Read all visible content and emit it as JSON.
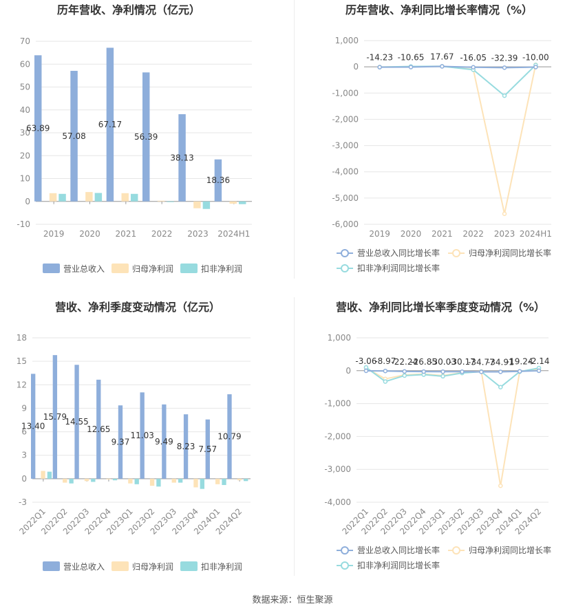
{
  "source": "数据来源：恒生聚源",
  "colors": {
    "revenue": "#8eaedb",
    "net_profit": "#fde3b8",
    "deducted_profit": "#97dbdf",
    "rev_growth": "#8eaedb",
    "np_growth": "#fde3b8",
    "dp_growth": "#97dbdf",
    "grid": "#e6e6e6",
    "axis": "#cfcfcf",
    "tick": "#888888",
    "title": "#333333"
  },
  "chart_data": [
    {
      "type": "bar",
      "title": "历年营收、净利情况（亿元）",
      "categories": [
        "2019",
        "2020",
        "2021",
        "2022",
        "2023",
        "2024H1"
      ],
      "ylim": [
        -10,
        70
      ],
      "yticks": [
        -10,
        0,
        10,
        20,
        30,
        40,
        50,
        60,
        70
      ],
      "series": [
        {
          "name": "营业总收入",
          "values": [
            63.89,
            57.08,
            67.17,
            56.39,
            38.13,
            18.36
          ],
          "labels": [
            "63.89",
            "57.08",
            "67.17",
            "56.39",
            "38.13",
            "18.36"
          ]
        },
        {
          "name": "归母净利润",
          "values": [
            3.6,
            4.1,
            3.6,
            0.3,
            -3.0,
            -1.0
          ]
        },
        {
          "name": "扣非净利润",
          "values": [
            3.3,
            3.7,
            3.3,
            -0.2,
            -3.3,
            -1.2
          ]
        }
      ],
      "legend": "bottom"
    },
    {
      "type": "line",
      "title": "历年营收、净利同比增长率情况（%）",
      "categories": [
        "2019",
        "2020",
        "2021",
        "2022",
        "2023",
        "2024H1"
      ],
      "ylim": [
        -6000,
        1000
      ],
      "yticks": [
        -6000,
        -5000,
        -4000,
        -3000,
        -2000,
        -1000,
        0,
        1000
      ],
      "ytick_labels": [
        "-6,000",
        "-5,000",
        "-4,000",
        "-3,000",
        "-2,000",
        "-1,000",
        "0",
        "1,000"
      ],
      "series": [
        {
          "name": "营业总收入同比增长率",
          "values": [
            -14.23,
            -10.65,
            17.67,
            -16.05,
            -32.39,
            -10.0
          ],
          "labels": [
            "-14.23",
            "-10.65",
            "17.67",
            "-16.05",
            "-32.39",
            "-10.00"
          ]
        },
        {
          "name": "归母净利润同比增长率",
          "values": [
            -5,
            10,
            20,
            -95,
            -5600,
            80
          ]
        },
        {
          "name": "扣非净利润同比增长率",
          "values": [
            -10,
            15,
            20,
            -110,
            -1100,
            70
          ]
        }
      ],
      "legend": "bottom"
    },
    {
      "type": "bar",
      "title": "营收、净利季度变动情况（亿元）",
      "categories": [
        "2022Q1",
        "2022Q2",
        "2022Q3",
        "2022Q4",
        "2023Q1",
        "2023Q2",
        "2023Q3",
        "2023Q4",
        "2024Q1",
        "2024Q2"
      ],
      "ylim": [
        -3,
        18
      ],
      "yticks": [
        -3,
        0,
        3,
        6,
        9,
        12,
        15,
        18
      ],
      "series": [
        {
          "name": "营业总收入",
          "values": [
            13.4,
            15.79,
            14.55,
            12.65,
            9.37,
            11.03,
            9.49,
            8.23,
            7.57,
            10.79
          ],
          "labels": [
            "13.40",
            "15.79",
            "14.55",
            "12.65",
            "9.37",
            "11.03",
            "9.49",
            "8.23",
            "7.57",
            "10.79"
          ]
        },
        {
          "name": "归母净利润",
          "values": [
            1.0,
            -0.5,
            -0.3,
            -0.05,
            -0.6,
            -0.9,
            -0.5,
            -1.1,
            -0.7,
            -0.2
          ]
        },
        {
          "name": "扣非净利润",
          "values": [
            0.9,
            -0.6,
            -0.4,
            -0.2,
            -0.7,
            -1.0,
            -0.5,
            -1.3,
            -0.8,
            -0.3
          ]
        }
      ],
      "legend": "bottom"
    },
    {
      "type": "line",
      "title": "营收、净利同比增长率季度变动情况（%）",
      "categories": [
        "2022Q1",
        "2022Q2",
        "2022Q3",
        "2022Q4",
        "2023Q1",
        "2023Q2",
        "2023Q3",
        "2023Q4",
        "2024Q1",
        "2024Q2"
      ],
      "ylim": [
        -4000,
        1000
      ],
      "yticks": [
        -4000,
        -3000,
        -2000,
        -1000,
        0,
        1000
      ],
      "ytick_labels": [
        "-4,000",
        "-3,000",
        "-2,000",
        "-1,000",
        "0",
        "1,000"
      ],
      "series": [
        {
          "name": "营业总收入同比增长率",
          "values": [
            -3.06,
            -8.97,
            -22.24,
            -26.85,
            -30.03,
            -30.17,
            -34.77,
            -34.91,
            -19.24,
            -2.14
          ],
          "labels": [
            "-3.06",
            "-8.97",
            "-22.24",
            "-26.85",
            "-30.03",
            "-30.17",
            "-34.77",
            "-34.91",
            "-19.24",
            "-2.14"
          ]
        },
        {
          "name": "归母净利润同比增长率",
          "values": [
            80,
            -250,
            -130,
            -100,
            -150,
            -60,
            -20,
            -3500,
            -20,
            40
          ]
        },
        {
          "name": "扣非净利润同比增长率",
          "values": [
            100,
            -330,
            -150,
            -120,
            -170,
            -70,
            -30,
            -500,
            -30,
            80
          ]
        }
      ],
      "legend": "bottom"
    }
  ]
}
